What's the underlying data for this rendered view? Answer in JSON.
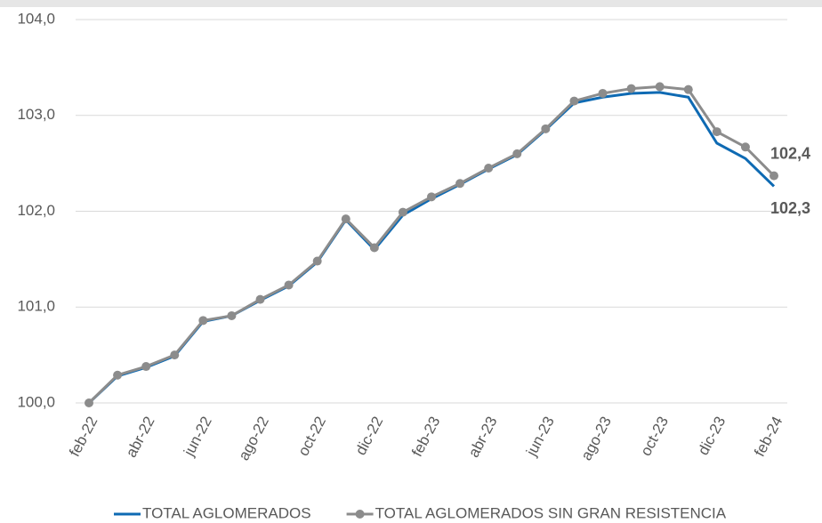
{
  "chart_data": {
    "type": "line",
    "categories": [
      "feb-22",
      null,
      "abr-22",
      null,
      "jun-22",
      null,
      "ago-22",
      null,
      "oct-22",
      null,
      "dic-22",
      null,
      "feb-23",
      null,
      "abr-23",
      null,
      "jun-23",
      null,
      "ago-23",
      null,
      "oct-23",
      null,
      "dic-23",
      null,
      "feb-24"
    ],
    "series": [
      {
        "name": "TOTAL AGLOMERADOS",
        "color": "#0e6ab3",
        "markers": false,
        "values": [
          100.0,
          100.28,
          100.37,
          100.49,
          100.85,
          100.91,
          101.07,
          101.22,
          101.47,
          101.91,
          101.6,
          101.96,
          102.13,
          102.28,
          102.44,
          102.59,
          102.85,
          103.13,
          103.19,
          103.23,
          103.24,
          103.19,
          102.71,
          102.55,
          102.26
        ],
        "value_labels": [
          null,
          null,
          null,
          null,
          null,
          null,
          null,
          null,
          null,
          null,
          null,
          null,
          null,
          null,
          null,
          null,
          null,
          null,
          null,
          null,
          null,
          null,
          null,
          null,
          "102,3"
        ]
      },
      {
        "name": "TOTAL AGLOMERADOS SIN GRAN RESISTENCIA",
        "color": "#8c8c8c",
        "markers": true,
        "values": [
          100.0,
          100.29,
          100.38,
          100.5,
          100.86,
          100.91,
          101.08,
          101.23,
          101.48,
          101.92,
          101.62,
          101.99,
          102.15,
          102.29,
          102.45,
          102.6,
          102.86,
          103.15,
          103.23,
          103.28,
          103.3,
          103.27,
          102.83,
          102.67,
          102.37
        ],
        "value_labels": [
          null,
          null,
          null,
          null,
          null,
          null,
          null,
          null,
          null,
          null,
          null,
          null,
          null,
          null,
          null,
          null,
          null,
          null,
          null,
          null,
          null,
          null,
          null,
          null,
          "102,4"
        ]
      }
    ],
    "ylim": [
      100,
      104
    ],
    "yticks": [
      {
        "value": 100,
        "label": "100,0"
      },
      {
        "value": 101,
        "label": "101,0"
      },
      {
        "value": 102,
        "label": "102,0"
      },
      {
        "value": 103,
        "label": "103,0"
      },
      {
        "value": 104,
        "label": "104,0"
      }
    ],
    "grid": true,
    "legend": "bottom"
  }
}
